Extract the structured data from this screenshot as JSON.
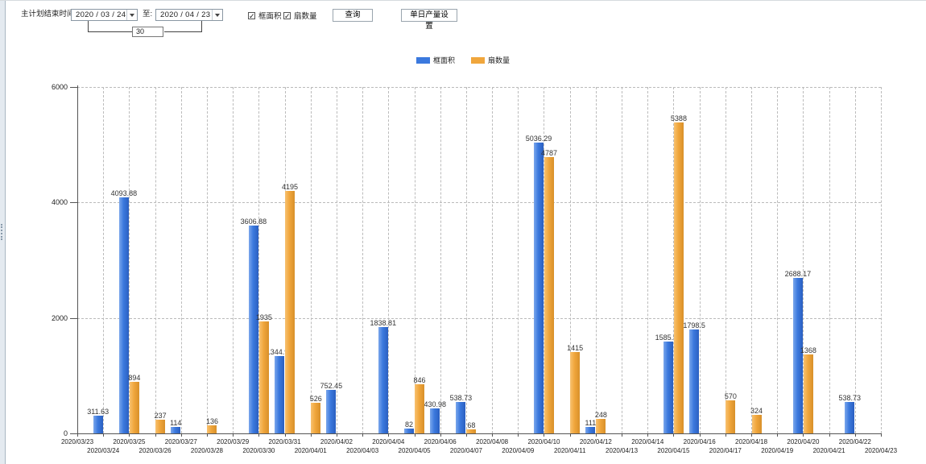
{
  "toolbar": {
    "main_label": "主计划结束时间:",
    "date_from": "2020 / 03 / 24",
    "to_label": "至:",
    "date_to": "2020 / 04 / 23",
    "span_days": "30",
    "checkbox_frame_area": {
      "label": "框面积",
      "checked": true,
      "check_glyph": "✓"
    },
    "checkbox_fan_count": {
      "label": "扇数量",
      "checked": true,
      "check_glyph": "✓"
    },
    "query_button": "查询",
    "daily_output_button": "单日产量设置"
  },
  "legend": [
    {
      "label": "框面积",
      "color": "#3B79DE"
    },
    {
      "label": "扇数量",
      "color": "#F0A63C"
    }
  ],
  "chart_data": {
    "type": "bar",
    "title": "",
    "xlabel": "",
    "ylabel": "",
    "ylim": [
      0,
      6000
    ],
    "yticks": [
      0,
      2000,
      4000,
      6000
    ],
    "grid": true,
    "legend_position": "top-center",
    "categories": [
      "2020/03/23",
      "2020/03/24",
      "2020/03/25",
      "2020/03/26",
      "2020/03/27",
      "2020/03/28",
      "2020/03/29",
      "2020/03/30",
      "2020/03/31",
      "2020/04/01",
      "2020/04/02",
      "2020/04/03",
      "2020/04/04",
      "2020/04/05",
      "2020/04/06",
      "2020/04/07",
      "2020/04/08",
      "2020/04/09",
      "2020/04/10",
      "2020/04/11",
      "2020/04/12",
      "2020/04/13",
      "2020/04/14",
      "2020/04/15",
      "2020/04/16",
      "2020/04/17",
      "2020/04/18",
      "2020/04/19",
      "2020/04/20",
      "2020/04/21",
      "2020/04/22",
      "2020/04/23"
    ],
    "series": [
      {
        "name": "框面积",
        "color": "#3B79DE",
        "values": [
          null,
          311.63,
          4093.88,
          null,
          114,
          null,
          null,
          3606.88,
          1344.95,
          null,
          752.45,
          null,
          1838.81,
          82,
          430.98,
          538.73,
          null,
          null,
          5036.29,
          null,
          111,
          null,
          null,
          1585.96,
          1798.5,
          null,
          null,
          null,
          2688.17,
          null,
          538.73,
          null
        ]
      },
      {
        "name": "扇数量",
        "color": "#F0A63C",
        "values": [
          null,
          null,
          894,
          237,
          null,
          136,
          null,
          1935,
          4195,
          526,
          null,
          null,
          null,
          846,
          null,
          68,
          null,
          null,
          4787,
          1415,
          248,
          null,
          null,
          5388,
          null,
          570,
          324,
          null,
          1368,
          null,
          null,
          null
        ]
      }
    ]
  }
}
